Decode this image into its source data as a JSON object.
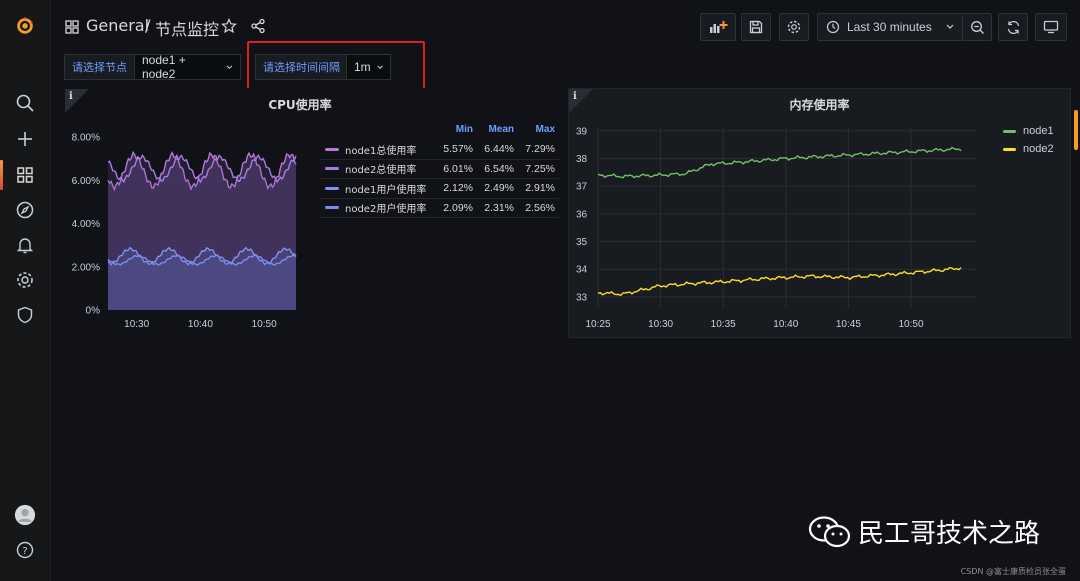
{
  "breadcrumb": {
    "folder": "General",
    "separator": "/",
    "title": "节点监控"
  },
  "toolbar": {
    "time_range": "Last 30 minutes"
  },
  "variables": {
    "node_label": "请选择节点",
    "node_value": "node1 + node2",
    "interval_label": "请选择时间间隔",
    "interval_value": "1m"
  },
  "icons": {
    "logo": "grafana-logo-icon",
    "search": "search-icon",
    "add": "plus-icon",
    "dashboards": "dashboards-icon",
    "explore": "compass-icon",
    "alerting": "bell-icon",
    "config": "gear-icon",
    "admin": "shield-icon",
    "avatar": "avatar-icon",
    "help": "help-icon"
  },
  "colors": {
    "accent_orange": "#f39c2c",
    "node1_total": "#b877d9",
    "node2_total": "#a97de0",
    "node1_user": "#8093f0",
    "node2_user": "#7b8cf0",
    "mem_node1": "#73bf69",
    "mem_node2": "#fade2a",
    "highlight": "#e02020"
  },
  "cpu_panel": {
    "title": "CPU使用率",
    "legend_headers": {
      "min": "Min",
      "mean": "Mean",
      "max": "Max"
    },
    "legend": [
      {
        "name": "node1总使用率",
        "min": "5.57%",
        "mean": "6.44%",
        "max": "7.29%"
      },
      {
        "name": "node2总使用率",
        "min": "6.01%",
        "mean": "6.54%",
        "max": "7.25%"
      },
      {
        "name": "node1用户使用率",
        "min": "2.12%",
        "mean": "2.49%",
        "max": "2.91%"
      },
      {
        "name": "node2用户使用率",
        "min": "2.09%",
        "mean": "2.31%",
        "max": "2.56%"
      }
    ]
  },
  "mem_panel": {
    "title": "内存使用率",
    "legend": [
      {
        "name": "node1"
      },
      {
        "name": "node2"
      }
    ]
  },
  "chart_data": [
    {
      "type": "area",
      "title": "CPU使用率",
      "x_ticks": [
        "10:30",
        "10:40",
        "10:50"
      ],
      "y_ticks": [
        "0%",
        "2.00%",
        "4.00%",
        "6.00%",
        "8.00%"
      ],
      "ylim": [
        0,
        8
      ],
      "x_range_minutes": [
        25.5,
        55
      ],
      "grid": false,
      "series": [
        {
          "name": "node1总使用率",
          "min": 5.57,
          "mean": 6.44,
          "max": 7.29,
          "period_min": 6.1,
          "phase": 0.4
        },
        {
          "name": "node2总使用率",
          "min": 6.01,
          "mean": 6.54,
          "max": 7.25,
          "period_min": 6.1,
          "phase": 0.2
        },
        {
          "name": "node1用户使用率",
          "min": 2.12,
          "mean": 2.49,
          "max": 2.91,
          "period_min": 6.1,
          "phase": 0.5
        },
        {
          "name": "node2用户使用率",
          "min": 2.09,
          "mean": 2.31,
          "max": 2.56,
          "period_min": 6.1,
          "phase": 0.3
        }
      ]
    },
    {
      "type": "line",
      "title": "内存使用率",
      "x_ticks": [
        "10:25",
        "10:30",
        "10:35",
        "10:40",
        "10:45",
        "10:50"
      ],
      "y_ticks": [
        "33",
        "34",
        "35",
        "36",
        "37",
        "38",
        "39"
      ],
      "ylim": [
        32.6,
        39.1
      ],
      "grid": true,
      "legend_position": "top-right",
      "series": [
        {
          "name": "node1",
          "x": [
            "10:25",
            "10:27",
            "10:30",
            "10:32",
            "10:34",
            "10:36",
            "10:40",
            "10:44",
            "10:48",
            "10:52",
            "10:54"
          ],
          "values": [
            37.4,
            37.35,
            37.4,
            37.45,
            37.8,
            37.85,
            38.0,
            38.1,
            38.2,
            38.3,
            38.35
          ]
        },
        {
          "name": "node2",
          "x": [
            "10:25",
            "10:27",
            "10:30",
            "10:33",
            "10:35",
            "10:38",
            "10:42",
            "10:45",
            "10:48",
            "10:52",
            "10:54"
          ],
          "values": [
            33.15,
            33.1,
            33.4,
            33.5,
            33.55,
            33.65,
            33.75,
            33.7,
            33.8,
            33.95,
            34.05
          ]
        }
      ]
    }
  ],
  "watermark": "民工哥技术之路",
  "footer_credit": "CSDN @富士康质检员张全蛋"
}
